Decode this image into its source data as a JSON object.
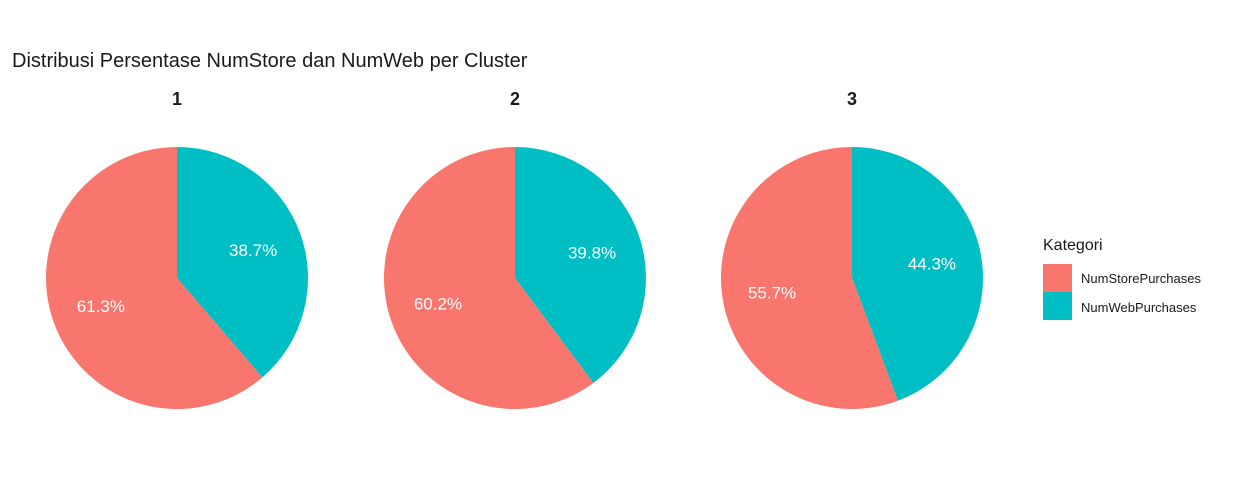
{
  "chart_data": {
    "type": "pie",
    "title": "Distribusi Persentase NumStore dan NumWeb per Cluster",
    "categories": [
      "NumStorePurchases",
      "NumWebPurchases"
    ],
    "colors": [
      "#F8766D",
      "#00BFC4"
    ],
    "legend": {
      "title": "Kategori",
      "placement": "right",
      "entries": [
        "NumStorePurchases",
        "NumWebPurchases"
      ]
    },
    "facets": [
      {
        "label": "1",
        "values": [
          61.3,
          38.7
        ],
        "labels": [
          "61.3%",
          "38.7%"
        ]
      },
      {
        "label": "2",
        "values": [
          60.2,
          39.8
        ],
        "labels": [
          "60.2%",
          "39.8%"
        ]
      },
      {
        "label": "3",
        "values": [
          55.7,
          44.3
        ],
        "labels": [
          "55.7%",
          "44.3%"
        ]
      }
    ]
  }
}
